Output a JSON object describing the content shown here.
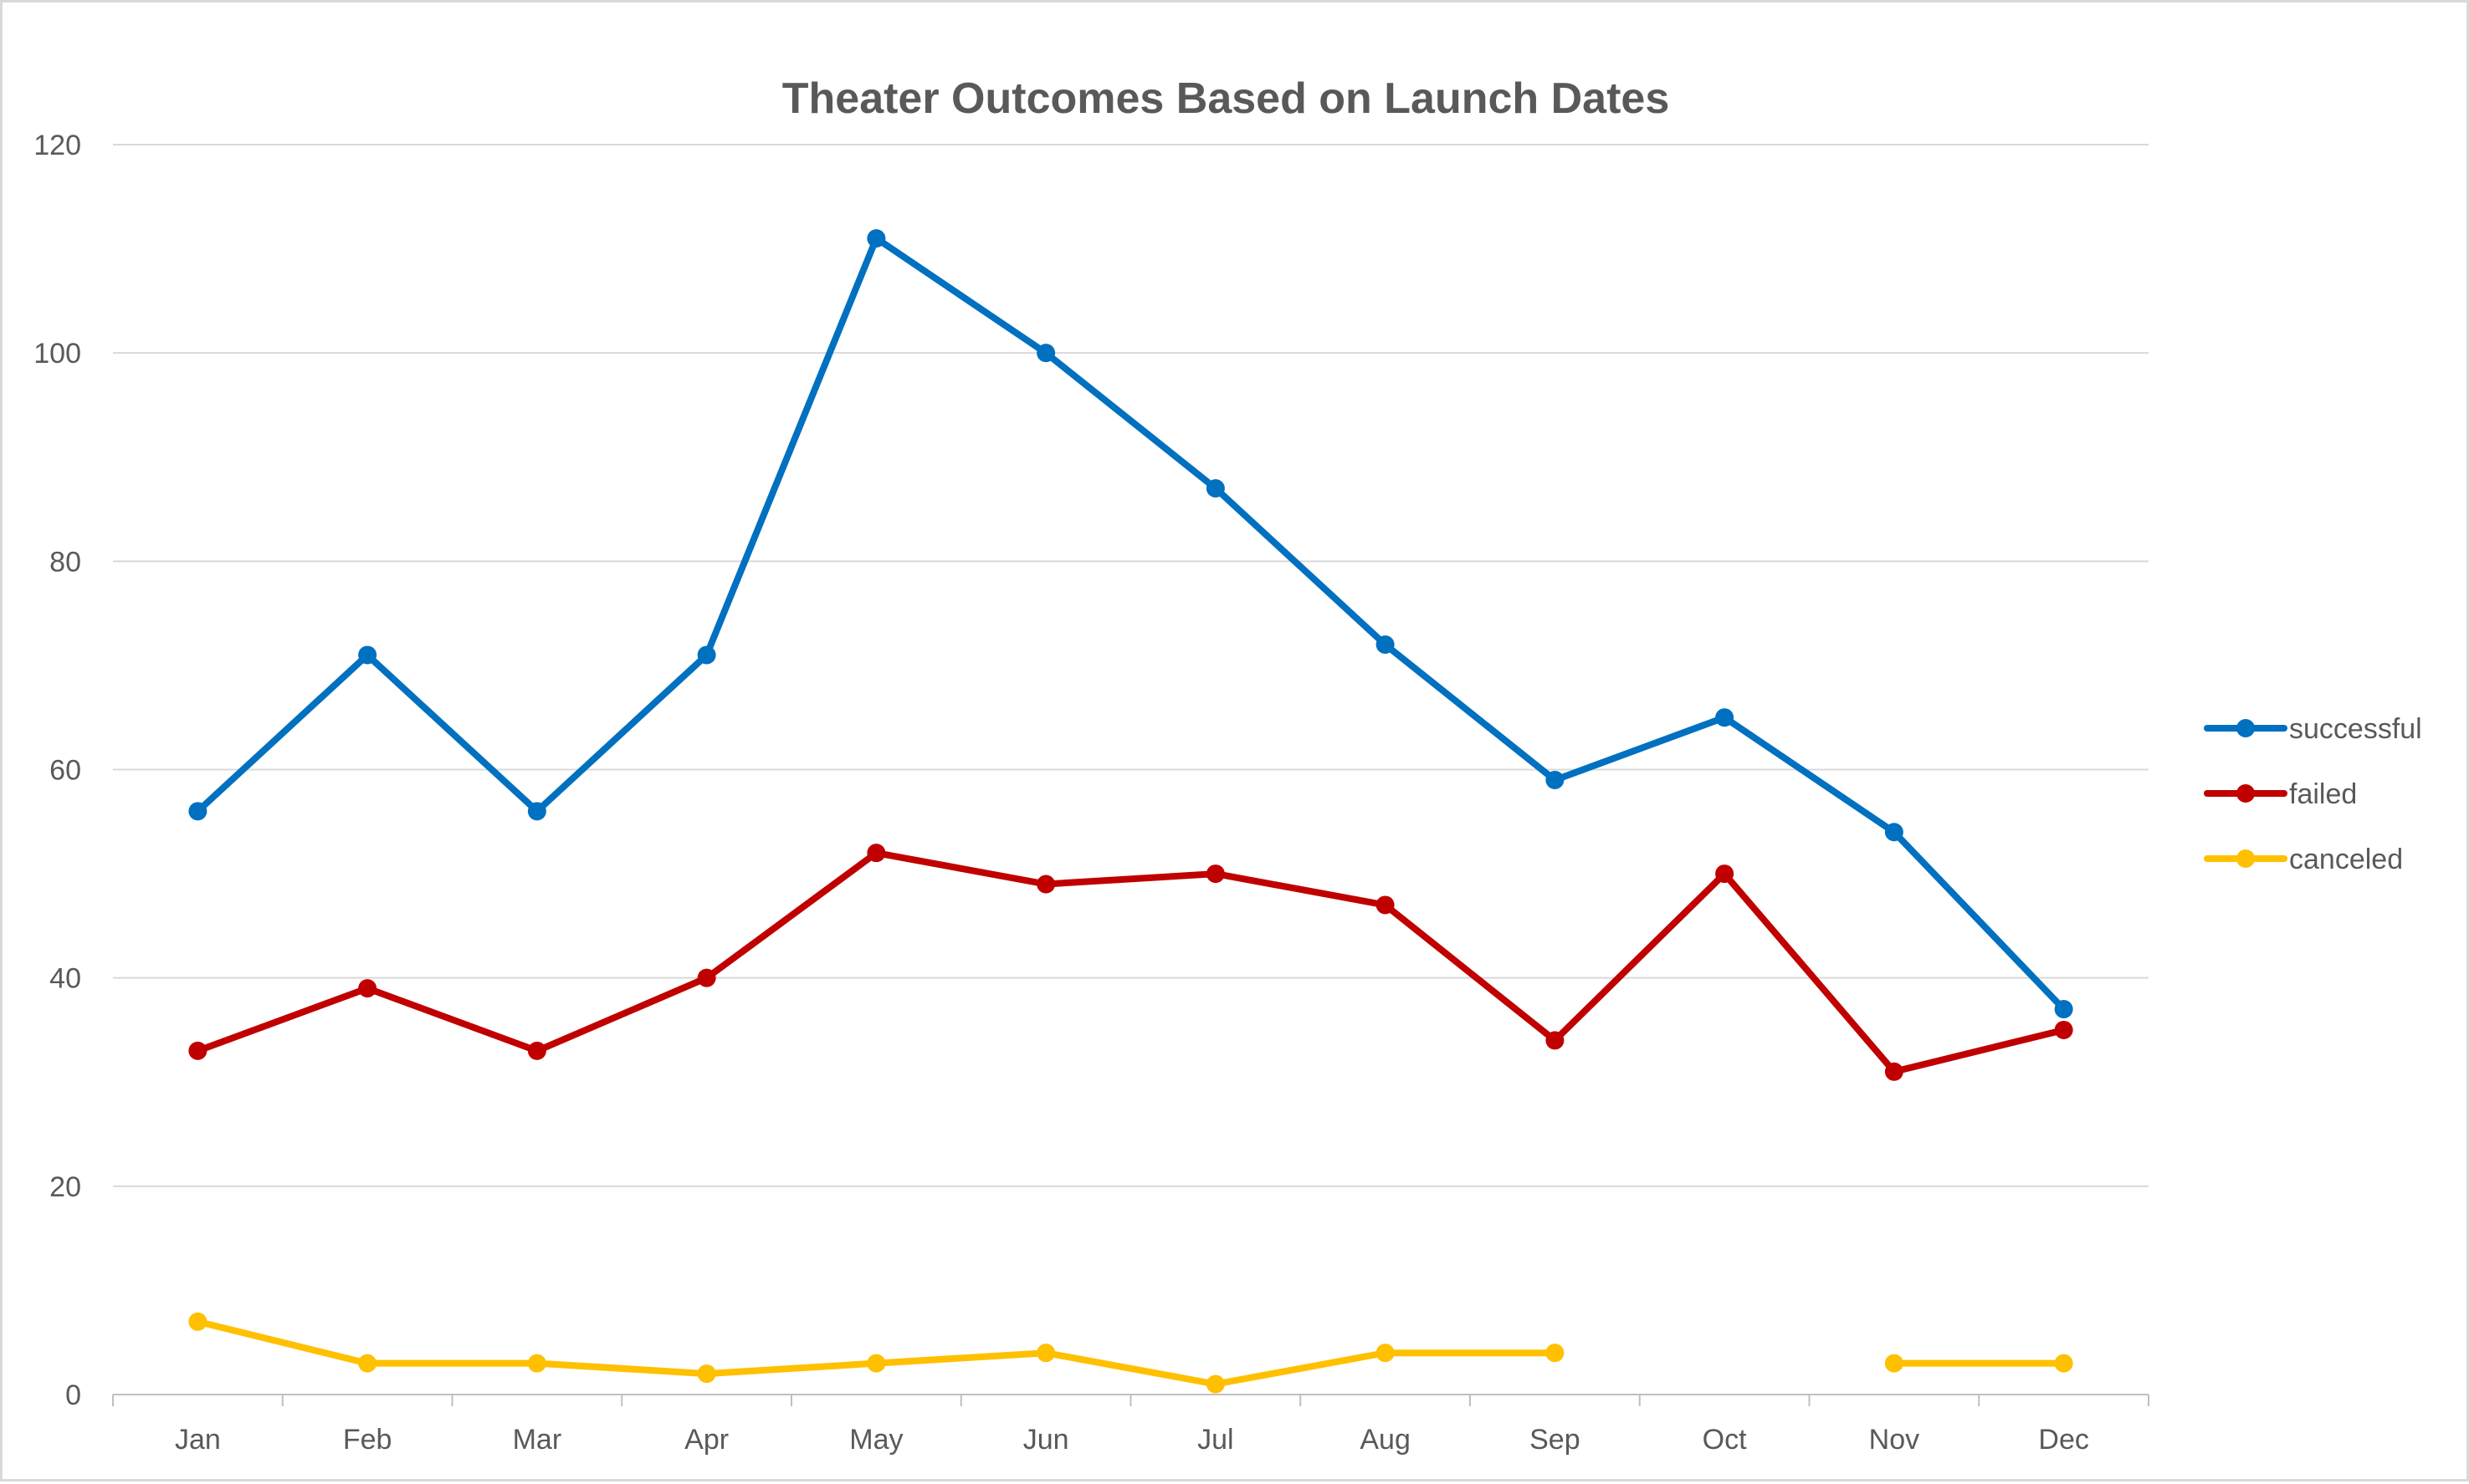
{
  "chart_data": {
    "type": "line",
    "title": "Theater Outcomes Based on Launch Dates",
    "xlabel": "",
    "ylabel": "",
    "categories": [
      "Jan",
      "Feb",
      "Mar",
      "Apr",
      "May",
      "Jun",
      "Jul",
      "Aug",
      "Sep",
      "Oct",
      "Nov",
      "Dec"
    ],
    "ylim": [
      0,
      120
    ],
    "yticks": [
      0,
      20,
      40,
      60,
      80,
      100,
      120
    ],
    "grid": true,
    "legend_position": "right",
    "series": [
      {
        "name": "successful",
        "color": "#0070c0",
        "values": [
          56,
          71,
          56,
          71,
          111,
          100,
          87,
          72,
          59,
          65,
          54,
          37
        ]
      },
      {
        "name": "failed",
        "color": "#c00000",
        "values": [
          33,
          39,
          33,
          40,
          52,
          49,
          50,
          47,
          34,
          50,
          31,
          35
        ]
      },
      {
        "name": "canceled",
        "color": "#ffc000",
        "values": [
          7,
          3,
          3,
          2,
          3,
          4,
          1,
          4,
          4,
          null,
          3,
          3
        ]
      }
    ]
  }
}
